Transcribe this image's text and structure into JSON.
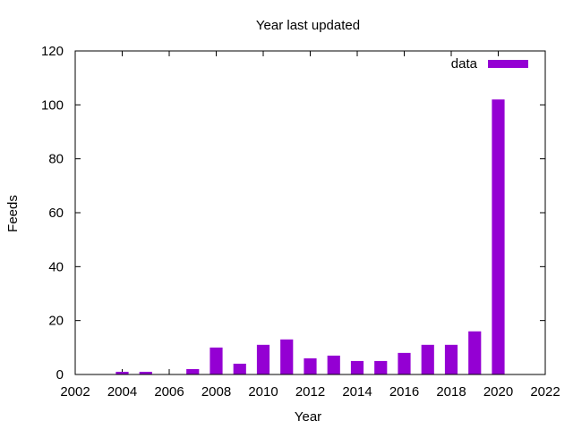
{
  "chart_data": {
    "type": "bar",
    "title": "Year last updated",
    "xlabel": "Year",
    "ylabel": "Feeds",
    "xlim": [
      2002,
      2022
    ],
    "ylim": [
      0,
      120
    ],
    "xticks": [
      2002,
      2004,
      2006,
      2008,
      2010,
      2012,
      2014,
      2016,
      2018,
      2020,
      2022
    ],
    "yticks": [
      0,
      20,
      40,
      60,
      80,
      100,
      120
    ],
    "legend": {
      "label": "data",
      "position": "top-right"
    },
    "bar_color": "#9400d3",
    "series": [
      {
        "name": "data",
        "x": [
          2004,
          2005,
          2007,
          2008,
          2009,
          2010,
          2011,
          2012,
          2013,
          2014,
          2015,
          2016,
          2017,
          2018,
          2019,
          2020
        ],
        "values": [
          1,
          1,
          2,
          10,
          4,
          11,
          13,
          6,
          7,
          5,
          5,
          8,
          11,
          11,
          16,
          102
        ]
      }
    ]
  }
}
